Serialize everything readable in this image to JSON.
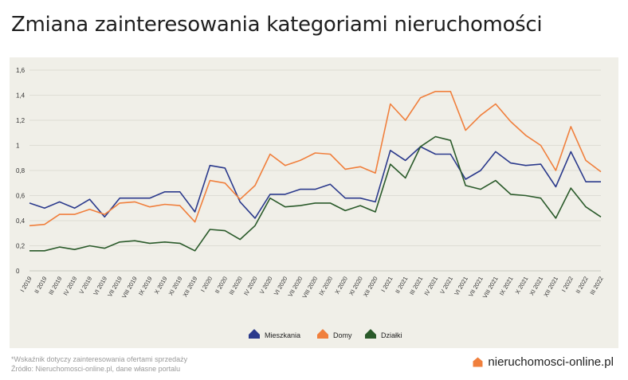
{
  "title": "Zmiana zainteresowania kategoriami nieruchomości",
  "footnote1": "*Wskaźnik dotyczy zainteresowania ofertami sprzedaży",
  "footnote2": "Źródło: Nieruchomosci-online.pl, dane własne portalu",
  "brand": "nieruchomosci-online.pl",
  "brand_color": "#f07f3c",
  "chart_data": {
    "type": "line",
    "categories": [
      "I 2019",
      "II 2019",
      "III 2019",
      "IV 2019",
      "V 2019",
      "VI 2019",
      "VII 2019",
      "VIII 2019",
      "IX 2019",
      "X 2019",
      "XI 2019",
      "XII 2019",
      "I 2020",
      "II 2020",
      "III 2020",
      "IV 2020",
      "V 2020",
      "VI 2020",
      "VII 2020",
      "VIII 2020",
      "IX 2020",
      "X 2020",
      "XI 2020",
      "XII 2020",
      "I 2021",
      "II 2021",
      "III 2021",
      "IV 2021",
      "V 2021",
      "VI 2021",
      "VII 2021",
      "VIII 2021",
      "IX 2021",
      "X 2021",
      "XI 2021",
      "XII 2021",
      "I 2022",
      "II 2022",
      "III 2022"
    ],
    "ylim": [
      0,
      1.6
    ],
    "yticks": [
      "0",
      "0,2",
      "0,4",
      "0,6",
      "0,8",
      "1",
      "1,2",
      "1,4",
      "1,6"
    ],
    "grid": true,
    "legend_position": "bottom",
    "series": [
      {
        "name": "Mieszkania",
        "color": "#2b3a8c",
        "values": [
          0.54,
          0.5,
          0.55,
          0.5,
          0.57,
          0.43,
          0.58,
          0.58,
          0.58,
          0.63,
          0.63,
          0.47,
          0.84,
          0.82,
          0.55,
          0.42,
          0.61,
          0.61,
          0.65,
          0.65,
          0.69,
          0.58,
          0.58,
          0.55,
          0.96,
          0.88,
          0.99,
          0.93,
          0.93,
          0.73,
          0.8,
          0.95,
          0.86,
          0.84,
          0.85,
          0.67,
          0.95,
          0.71,
          0.71
        ]
      },
      {
        "name": "Domy",
        "color": "#f07f3c",
        "values": [
          0.36,
          0.37,
          0.45,
          0.45,
          0.49,
          0.45,
          0.54,
          0.55,
          0.51,
          0.53,
          0.52,
          0.39,
          0.72,
          0.7,
          0.57,
          0.68,
          0.93,
          0.84,
          0.88,
          0.94,
          0.93,
          0.81,
          0.83,
          0.78,
          1.33,
          1.2,
          1.38,
          1.43,
          1.43,
          1.12,
          1.24,
          1.33,
          1.19,
          1.08,
          1.0,
          0.8,
          1.15,
          0.88,
          0.79
        ]
      },
      {
        "name": "Działki",
        "color": "#2a5a2a",
        "values": [
          0.16,
          0.16,
          0.19,
          0.17,
          0.2,
          0.18,
          0.23,
          0.24,
          0.22,
          0.23,
          0.22,
          0.16,
          0.33,
          0.32,
          0.25,
          0.36,
          0.58,
          0.51,
          0.52,
          0.54,
          0.54,
          0.48,
          0.52,
          0.47,
          0.85,
          0.74,
          0.99,
          1.07,
          1.04,
          0.68,
          0.65,
          0.72,
          0.61,
          0.6,
          0.58,
          0.42,
          0.66,
          0.51,
          0.43
        ]
      }
    ]
  }
}
